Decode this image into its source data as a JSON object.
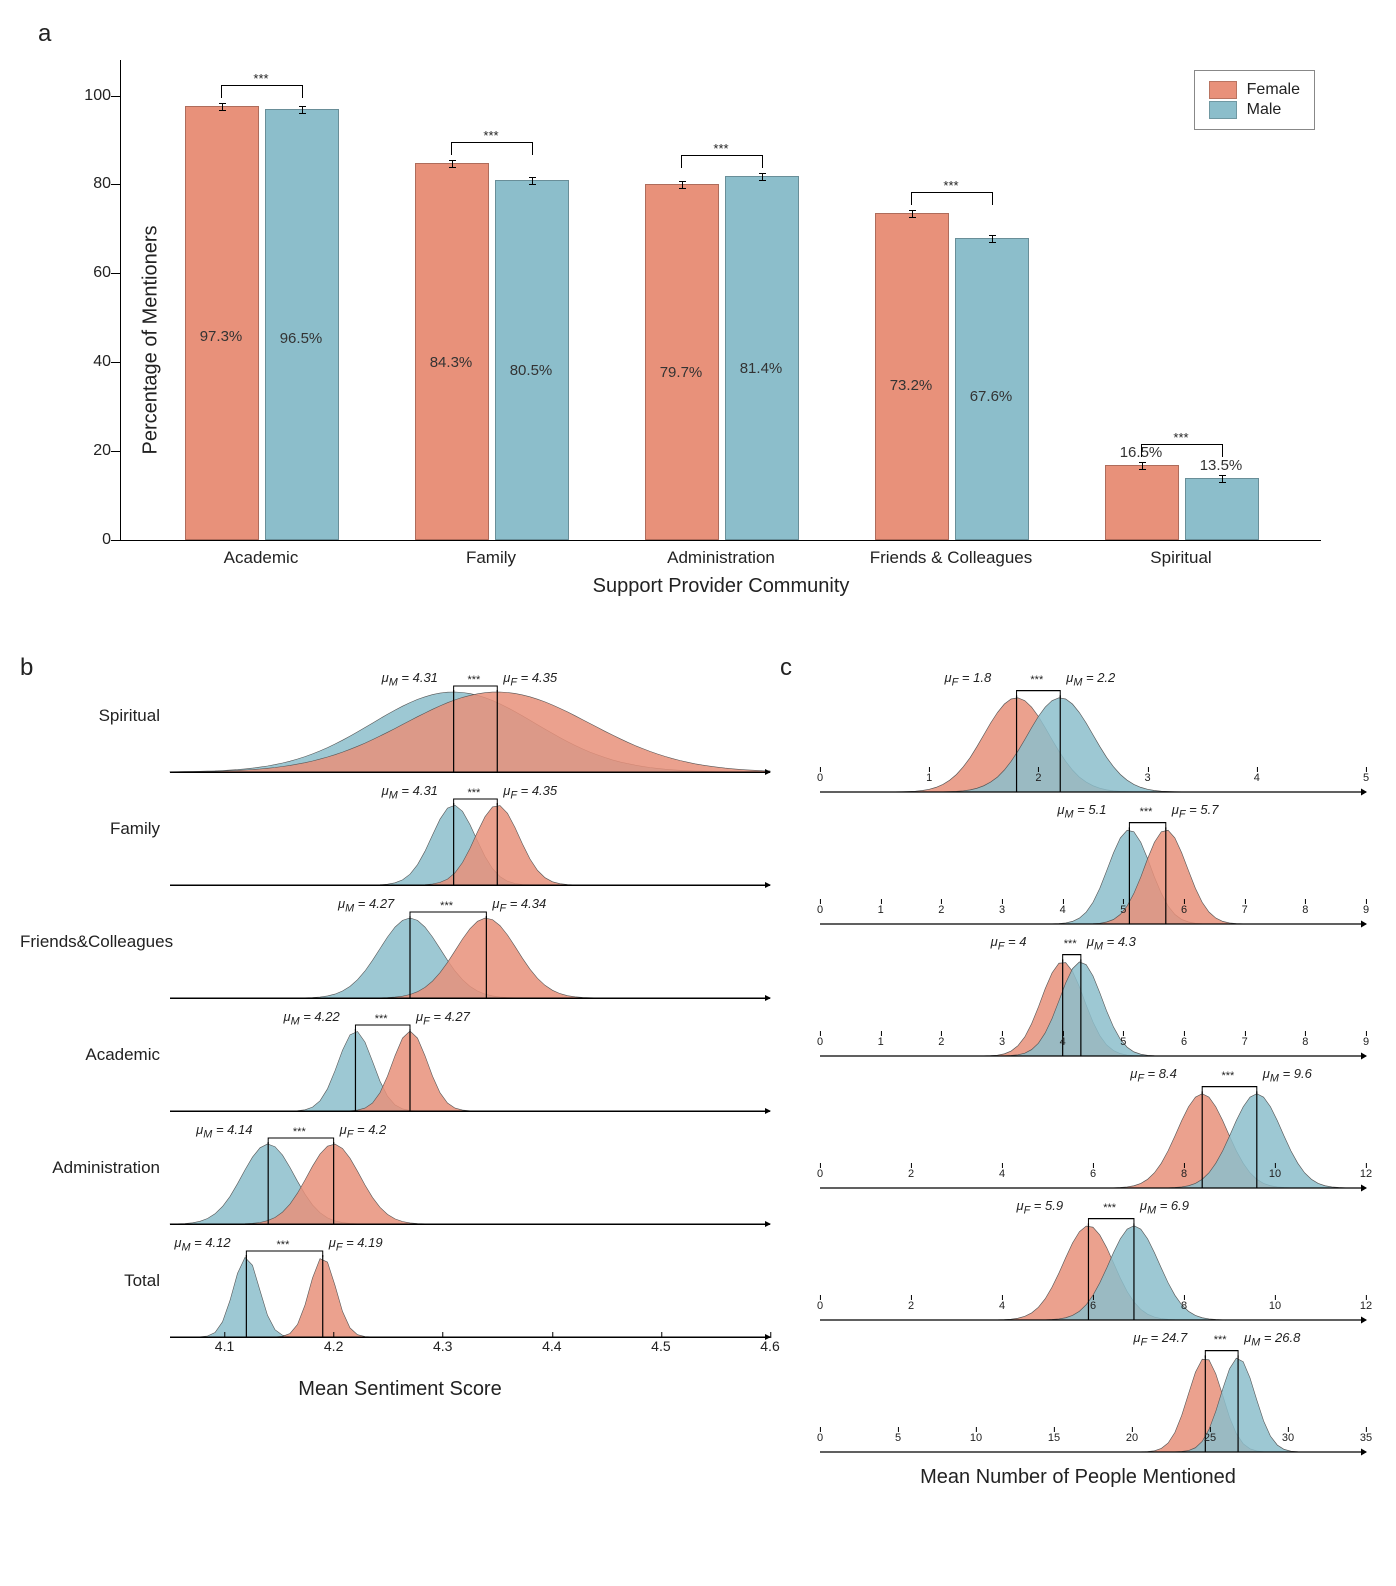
{
  "colors": {
    "female": "#e8917a",
    "male": "#8cbecb",
    "female_fill_alpha": 0.9,
    "male_fill_alpha": 0.9,
    "background": "#ffffff",
    "axis": "#000000"
  },
  "legend": {
    "female": "Female",
    "male": "Male"
  },
  "panel_a": {
    "label": "a",
    "ylabel": "Percentage of Mentioners",
    "xlabel": "Support Provider Community",
    "ylim": [
      0,
      108
    ],
    "yticks": [
      0,
      20,
      40,
      60,
      80,
      100
    ],
    "bar_width": 0.35,
    "sig_marker": "***",
    "categories": [
      {
        "name": "Academic",
        "female": 97.3,
        "male": 96.5
      },
      {
        "name": "Family",
        "female": 84.3,
        "male": 80.5
      },
      {
        "name": "Administration",
        "female": 79.7,
        "male": 81.4
      },
      {
        "name": "Friends & Colleagues",
        "female": 73.2,
        "male": 67.6
      },
      {
        "name": "Spiritual",
        "female": 16.5,
        "male": 13.5
      }
    ]
  },
  "panel_b": {
    "label": "b",
    "xlabel": "Mean Sentiment Score",
    "xlim": [
      4.05,
      4.6
    ],
    "xticks": [
      4.1,
      4.2,
      4.3,
      4.4,
      4.5,
      4.6
    ],
    "sig_marker": "***",
    "rows": [
      {
        "name": "Spiritual",
        "mu_m": 4.31,
        "sd_m": 0.075,
        "mu_f": 4.35,
        "sd_f": 0.085,
        "left": "M",
        "xmax_row": null
      },
      {
        "name": "Family",
        "mu_m": 4.31,
        "sd_m": 0.02,
        "mu_f": 4.35,
        "sd_f": 0.02,
        "left": "M",
        "xmax_row": null
      },
      {
        "name": "Friends&Colleagues",
        "mu_m": 4.27,
        "sd_m": 0.028,
        "mu_f": 4.34,
        "sd_f": 0.028,
        "left": "M",
        "xmax_row": null
      },
      {
        "name": "Academic",
        "mu_m": 4.22,
        "sd_m": 0.016,
        "mu_f": 4.27,
        "sd_f": 0.016,
        "left": "M",
        "xmax_row": null
      },
      {
        "name": "Administration",
        "mu_m": 4.14,
        "sd_m": 0.024,
        "mu_f": 4.2,
        "sd_f": 0.024,
        "left": "M",
        "xmax_row": null
      },
      {
        "name": "Total",
        "mu_m": 4.12,
        "sd_m": 0.012,
        "mu_f": 4.19,
        "sd_f": 0.012,
        "left": "M",
        "xmax_row": null
      }
    ]
  },
  "panel_c": {
    "label": "c",
    "xlabel": "Mean Number of People Mentioned",
    "sig_marker": "***",
    "rows": [
      {
        "name": "Spiritual",
        "mu_f": 1.8,
        "sd": 0.3,
        "mu_m": 2.2,
        "left": "F",
        "xlim": [
          0,
          5
        ],
        "xticks": [
          0,
          1,
          2,
          3,
          4,
          5
        ]
      },
      {
        "name": "Family",
        "mu_f": 5.7,
        "sd": 0.35,
        "mu_m": 5.1,
        "left": "M",
        "xlim": [
          0,
          9
        ],
        "xticks": [
          0,
          1,
          2,
          3,
          4,
          5,
          6,
          7,
          8,
          9
        ]
      },
      {
        "name": "Friends&Colleagues",
        "mu_f": 4.0,
        "sd": 0.35,
        "mu_m": 4.3,
        "left": "F",
        "xlim": [
          0,
          9
        ],
        "xticks": [
          0,
          1,
          2,
          3,
          4,
          5,
          6,
          7,
          8,
          9
        ]
      },
      {
        "name": "Academic",
        "mu_f": 8.4,
        "sd": 0.55,
        "mu_m": 9.6,
        "left": "F",
        "xlim": [
          0,
          12
        ],
        "xticks": [
          0,
          2,
          4,
          6,
          8,
          10,
          12
        ]
      },
      {
        "name": "Administration",
        "mu_f": 5.9,
        "sd": 0.55,
        "mu_m": 6.9,
        "left": "F",
        "xlim": [
          0,
          12
        ],
        "xticks": [
          0,
          2,
          4,
          6,
          8,
          10,
          12
        ]
      },
      {
        "name": "Total",
        "mu_f": 24.7,
        "sd": 1.1,
        "mu_m": 26.8,
        "left": "F",
        "xlim": [
          0,
          35
        ],
        "xticks": [
          0,
          5,
          10,
          15,
          20,
          25,
          30,
          35
        ]
      }
    ]
  }
}
